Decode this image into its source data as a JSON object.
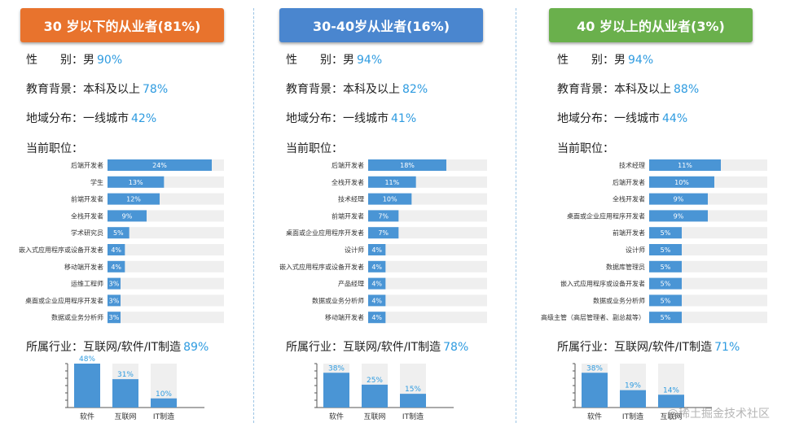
{
  "colors": {
    "bar": "#4a95d5",
    "track": "#efefef",
    "pct": "#2e9be0"
  },
  "panels": [
    {
      "header": "30 岁以下的从业者(81%)",
      "header_color": "#e8732d",
      "gender_label": "性　　别：",
      "gender_value": "男",
      "gender_pct": "90%",
      "edu_label": "教育背景：",
      "edu_value": "本科及以上",
      "edu_pct": "78%",
      "region_label": "地域分布：",
      "region_value": "一线城市",
      "region_pct": "42%",
      "position_title": "当前职位：",
      "industry_label": "所属行业：",
      "industry_value": "互联网/软件/IT制造",
      "industry_pct": "89%"
    },
    {
      "header": "30-40岁从业者(16%)",
      "header_color": "#4a86cf",
      "gender_label": "性　　别：",
      "gender_value": "男",
      "gender_pct": "94%",
      "edu_label": "教育背景：",
      "edu_value": "本科及以上",
      "edu_pct": "82%",
      "region_label": "地域分布：",
      "region_value": "一线城市",
      "region_pct": "41%",
      "position_title": "当前职位：",
      "industry_label": "所属行业：",
      "industry_value": "互联网/软件/IT制造",
      "industry_pct": "78%"
    },
    {
      "header": "40 岁以上的从业者(3%)",
      "header_color": "#6ab04c",
      "gender_label": "性　　别：",
      "gender_value": "男",
      "gender_pct": "94%",
      "edu_label": "教育背景：",
      "edu_value": "本科及以上",
      "edu_pct": "88%",
      "region_label": "地域分布：",
      "region_value": "一线城市",
      "region_pct": "44%",
      "position_title": "当前职位：",
      "industry_label": "所属行业：",
      "industry_value": "互联网/软件/IT制造",
      "industry_pct": "71%"
    }
  ],
  "chart_data": [
    {
      "type": "bar",
      "orientation": "horizontal",
      "title": "当前职位：",
      "categories": [
        "后端开发者",
        "学生",
        "前端开发者",
        "全栈开发者",
        "学术研究员",
        "嵌入式应用程序或设备开发者",
        "移动端开发者",
        "运维工程师",
        "桌面或企业应用程序开发者",
        "数据或业务分析师"
      ],
      "values": [
        24,
        13,
        12,
        9,
        5,
        4,
        4,
        3,
        3,
        3
      ],
      "labels": [
        "24%",
        "13%",
        "12%",
        "9%",
        "5%",
        "4%",
        "4%",
        "3%",
        "3%",
        "3%"
      ]
    },
    {
      "type": "bar",
      "title": "所属行业：",
      "categories": [
        "软件",
        "互联网",
        "IT制造"
      ],
      "values": [
        48,
        31,
        10
      ],
      "labels": [
        "48%",
        "31%",
        "10%"
      ]
    },
    {
      "type": "bar",
      "orientation": "horizontal",
      "title": "当前职位：",
      "categories": [
        "后端开发者",
        "全栈开发者",
        "技术经理",
        "前端开发者",
        "桌面或企业应用程序开发者",
        "设计师",
        "嵌入式应用程序或设备开发者",
        "产品经理",
        "数据或业务分析师",
        "移动端开发者"
      ],
      "values": [
        18,
        11,
        10,
        7,
        7,
        4,
        4,
        4,
        4,
        4
      ],
      "labels": [
        "18%",
        "11%",
        "10%",
        "7%",
        "7%",
        "4%",
        "4%",
        "4%",
        "4%",
        "4%"
      ]
    },
    {
      "type": "bar",
      "title": "所属行业：",
      "categories": [
        "软件",
        "互联网",
        "IT制造"
      ],
      "values": [
        38,
        25,
        15
      ],
      "labels": [
        "38%",
        "25%",
        "15%"
      ]
    },
    {
      "type": "bar",
      "orientation": "horizontal",
      "title": "当前职位：",
      "categories": [
        "技术经理",
        "后端开发者",
        "全栈开发者",
        "桌面或企业应用程序开发者",
        "前端开发者",
        "设计师",
        "数据库管理员",
        "嵌入式应用程序或设备开发者",
        "数据或业务分析师",
        "高级主管（高层管理者、副总裁等）"
      ],
      "values": [
        11,
        10,
        9,
        9,
        5,
        5,
        5,
        5,
        5,
        5
      ],
      "labels": [
        "11%",
        "10%",
        "9%",
        "9%",
        "5%",
        "5%",
        "5%",
        "5%",
        "5%",
        "5%"
      ]
    },
    {
      "type": "bar",
      "title": "所属行业：",
      "categories": [
        "软件",
        "IT制造",
        "互联网"
      ],
      "values": [
        38,
        19,
        14
      ],
      "labels": [
        "38%",
        "19%",
        "14%"
      ]
    }
  ],
  "watermark": "@稀土掘金技术社区"
}
